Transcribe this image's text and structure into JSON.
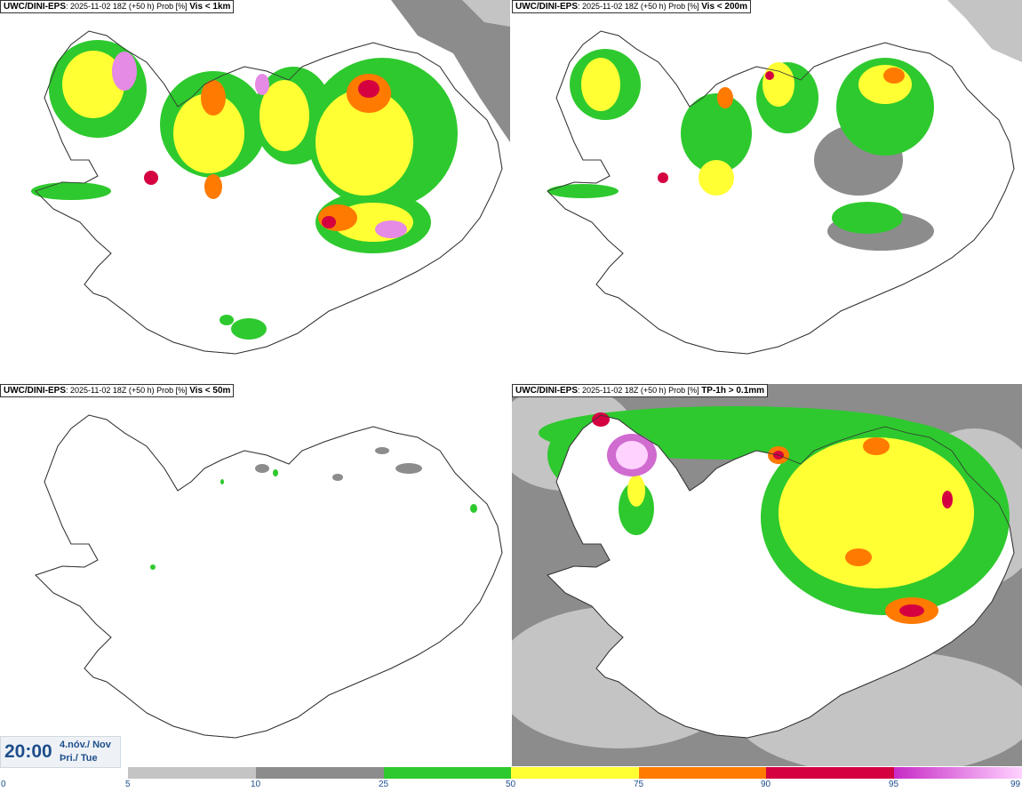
{
  "panels": [
    {
      "id": "vis1km",
      "model": "UWC/DINI-EPS",
      "info": ": 2025-11-02 18Z (+50 h) Prob [%]",
      "param": "Vis < 1km"
    },
    {
      "id": "vis200m",
      "model": "UWC/DINI-EPS",
      "info": ": 2025-11-02 18Z (+50 h) Prob [%]",
      "param": "Vis < 200m"
    },
    {
      "id": "vis50m",
      "model": "UWC/DINI-EPS",
      "info": ": 2025-11-02 18Z (+50 h) Prob [%]",
      "param": "Vis < 50m"
    },
    {
      "id": "tp1h",
      "model": "UWC/DINI-EPS",
      "info": ": 2025-11-02 18Z (+50 h) Prob [%]",
      "param": "TP-1h > 0.1mm"
    }
  ],
  "valid_time": {
    "time": "20:00",
    "date_line1": "4.nóv./ Nov",
    "date_line2": "Þri./ Tue"
  },
  "legend": {
    "ticks": [
      "0",
      "5",
      "10",
      "25",
      "50",
      "75",
      "90",
      "95",
      "99"
    ],
    "colors": {
      "p5": "#c4c4c4",
      "p10": "#8c8c8c",
      "p25": "#2ec92e",
      "p50": "#ffff33",
      "p75": "#ff7a00",
      "p90": "#d40040",
      "p95_start": "#c72bc7",
      "p99_end": "#ffd2ff"
    }
  }
}
